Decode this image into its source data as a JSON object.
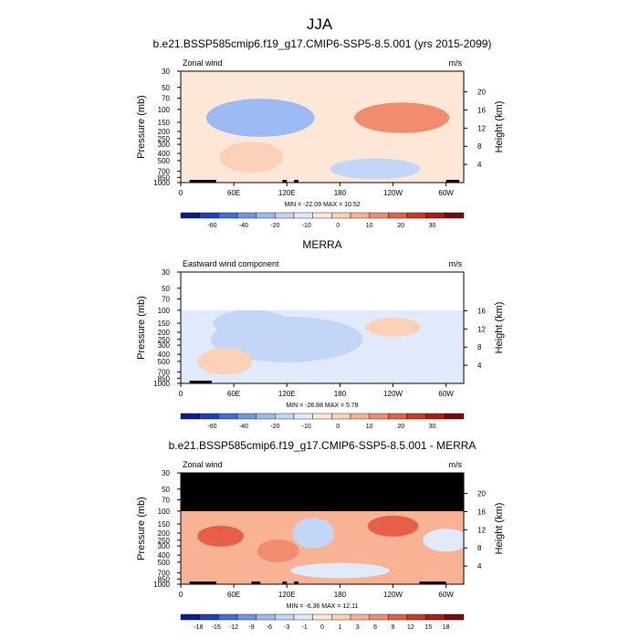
{
  "figure": {
    "title": "JJA"
  },
  "colors": {
    "neg": [
      "#0b1f8f",
      "#1f3fc2",
      "#3e6fe0",
      "#6f97ee",
      "#9cbaf4",
      "#c3d6f8",
      "#e0eafb"
    ],
    "pos": [
      "#fde8d8",
      "#fbd1b8",
      "#f7b394",
      "#f08d6e",
      "#e65f46",
      "#d2381f",
      "#b01a10",
      "#7a0a06"
    ],
    "mask": "#000000"
  },
  "chart_data": [
    {
      "type": "heatmap",
      "title": "b.e21.BSSP585cmip6.f19_g17.CMIP6-SSP5-8.5.001 (yrs 2015-2099)",
      "left_label": "Zonal wind",
      "right_label": "m/s",
      "xlabel": "",
      "ylabel": "Pressure (mb)",
      "y2label": "Height (km)",
      "x_ticks": [
        "0",
        "60E",
        "120E",
        "180",
        "120W",
        "60W"
      ],
      "x_tick_values": [
        0,
        60,
        120,
        180,
        240,
        300
      ],
      "xlim": [
        0,
        320
      ],
      "y_ticks": [
        "30",
        "50",
        "70",
        "100",
        "150",
        "200",
        "250",
        "300",
        "400",
        "500",
        "700",
        "850",
        "1000"
      ],
      "y_tick_values": [
        30,
        50,
        70,
        100,
        150,
        200,
        250,
        300,
        400,
        500,
        700,
        850,
        1000
      ],
      "ylim": [
        1000,
        30
      ],
      "y_scale": "log",
      "y2_ticks": [
        "20",
        "16",
        "12",
        "8",
        "4"
      ],
      "stats": "MIN = -22.09  MAX =  10.52",
      "levels_labels": [
        "-60",
        "-40",
        "-20",
        "-10",
        "0",
        "10",
        "20",
        "30"
      ],
      "data_top_mb": 30,
      "blobs": [
        {
          "lon": 100,
          "p": 150,
          "rx": 50,
          "ry": 0.45,
          "v": -22,
          "cls": 6
        },
        {
          "lon": 100,
          "p": 140,
          "rx": 75,
          "ry": 0.75,
          "v": -12,
          "cls": 5
        },
        {
          "lon": 90,
          "p": 130,
          "rx": 110,
          "ry": 1.0,
          "v": -5,
          "cls": 4
        },
        {
          "lon": 250,
          "p": 140,
          "rx": 60,
          "ry": 0.55,
          "v": 10.5,
          "cls": 4
        },
        {
          "lon": 250,
          "p": 130,
          "rx": 95,
          "ry": 0.8,
          "v": 6,
          "cls": 3
        },
        {
          "lon": 80,
          "p": 450,
          "rx": 60,
          "ry": 0.8,
          "v": 4,
          "cls": 1
        },
        {
          "lon": 220,
          "p": 650,
          "rx": 90,
          "ry": 0.55,
          "v": -2,
          "cls": 5
        }
      ],
      "baseline_class": 0,
      "baseline_sign": "pos",
      "topo": [
        [
          10,
          30
        ],
        [
          30,
          40
        ],
        [
          115,
          120
        ],
        [
          128,
          133
        ],
        [
          300,
          315
        ]
      ]
    },
    {
      "type": "heatmap",
      "title": "MERRA",
      "left_label": "Eastward wind component",
      "right_label": "m/s",
      "xlabel": "",
      "ylabel": "Pressure (mb)",
      "y2label": "Height (km)",
      "x_ticks": [
        "0",
        "60E",
        "120E",
        "180",
        "120W",
        "60W"
      ],
      "x_tick_values": [
        0,
        60,
        120,
        180,
        240,
        300
      ],
      "xlim": [
        0,
        320
      ],
      "y_ticks": [
        "30",
        "50",
        "70",
        "100",
        "150",
        "200",
        "250",
        "300",
        "400",
        "500",
        "700",
        "850",
        "1000"
      ],
      "y_tick_values": [
        30,
        50,
        70,
        100,
        150,
        200,
        250,
        300,
        400,
        500,
        700,
        850,
        1000
      ],
      "ylim": [
        1000,
        30
      ],
      "y_scale": "log",
      "y2_ticks": [
        "16",
        "12",
        "8",
        "4"
      ],
      "stats": "MIN = -26.88  MAX =   5.78",
      "levels_labels": [
        "-60",
        "-40",
        "-20",
        "-10",
        "0",
        "10",
        "20",
        "30"
      ],
      "data_top_mb": 100,
      "blobs": [
        {
          "lon": 75,
          "p": 145,
          "rx": 45,
          "ry": 0.45,
          "v": -26,
          "cls": 6
        },
        {
          "lon": 80,
          "p": 150,
          "rx": 75,
          "ry": 0.7,
          "v": -15,
          "cls": 5
        },
        {
          "lon": 120,
          "p": 250,
          "rx": 160,
          "ry": 1.2,
          "v": -5,
          "cls": 5
        },
        {
          "lon": 240,
          "p": 170,
          "rx": 50,
          "ry": 0.5,
          "v": 3,
          "cls": 1
        },
        {
          "lon": 50,
          "p": 500,
          "rx": 50,
          "ry": 0.7,
          "v": 3,
          "cls": 1
        }
      ],
      "baseline_class": 6,
      "baseline_sign": "neg",
      "topo": [
        [
          10,
          35
        ]
      ]
    },
    {
      "type": "heatmap",
      "title": "b.e21.BSSP585cmip6.f19_g17.CMIP6-SSP5-8.5.001 - MERRA",
      "left_label": "Zonal wind",
      "right_label": "m/s",
      "xlabel": "",
      "ylabel": "Pressure (mb)",
      "y2label": "Height (km)",
      "x_ticks": [
        "0",
        "60E",
        "120E",
        "180",
        "120W",
        "60W"
      ],
      "x_tick_values": [
        0,
        60,
        120,
        180,
        240,
        300
      ],
      "xlim": [
        0,
        320
      ],
      "y_ticks": [
        "30",
        "50",
        "70",
        "100",
        "150",
        "200",
        "250",
        "300",
        "400",
        "500",
        "700",
        "850",
        "1000"
      ],
      "y_tick_values": [
        30,
        50,
        70,
        100,
        150,
        200,
        250,
        300,
        400,
        500,
        700,
        850,
        1000
      ],
      "ylim": [
        1000,
        30
      ],
      "y_scale": "log",
      "y2_ticks": [
        "20",
        "16",
        "12",
        "8",
        "4"
      ],
      "stats": "MIN =  -6.36  MAX =  12.11",
      "levels_labels": [
        "-18",
        "-15",
        "-12",
        "-9",
        "-6",
        "-3",
        "-1",
        "0",
        "1",
        "3",
        "6",
        "9",
        "12",
        "15",
        "18"
      ],
      "data_top_mb": 100,
      "blobs": [
        {
          "lon": 240,
          "p": 150,
          "rx": 30,
          "ry": 0.4,
          "v": 12,
          "cls": 5
        },
        {
          "lon": 240,
          "p": 160,
          "rx": 45,
          "ry": 0.55,
          "v": 9,
          "cls": 4
        },
        {
          "lon": 45,
          "p": 220,
          "rx": 40,
          "ry": 0.55,
          "v": 9,
          "cls": 4
        },
        {
          "lon": 110,
          "p": 350,
          "rx": 35,
          "ry": 0.6,
          "v": 6,
          "cls": 3
        },
        {
          "lon": 150,
          "p": 200,
          "rx": 35,
          "ry": 0.8,
          "v": -3,
          "cls": 5
        },
        {
          "lon": 300,
          "p": 250,
          "rx": 40,
          "ry": 0.6,
          "v": -2,
          "cls": 6
        },
        {
          "lon": 180,
          "p": 650,
          "rx": 100,
          "ry": 0.4,
          "v": -1,
          "cls": 6
        }
      ],
      "baseline_class": 2,
      "baseline_sign": "pos",
      "topo": [
        [
          10,
          30
        ],
        [
          30,
          40
        ],
        [
          80,
          90
        ],
        [
          115,
          120
        ],
        [
          128,
          133
        ],
        [
          270,
          300
        ]
      ]
    }
  ]
}
